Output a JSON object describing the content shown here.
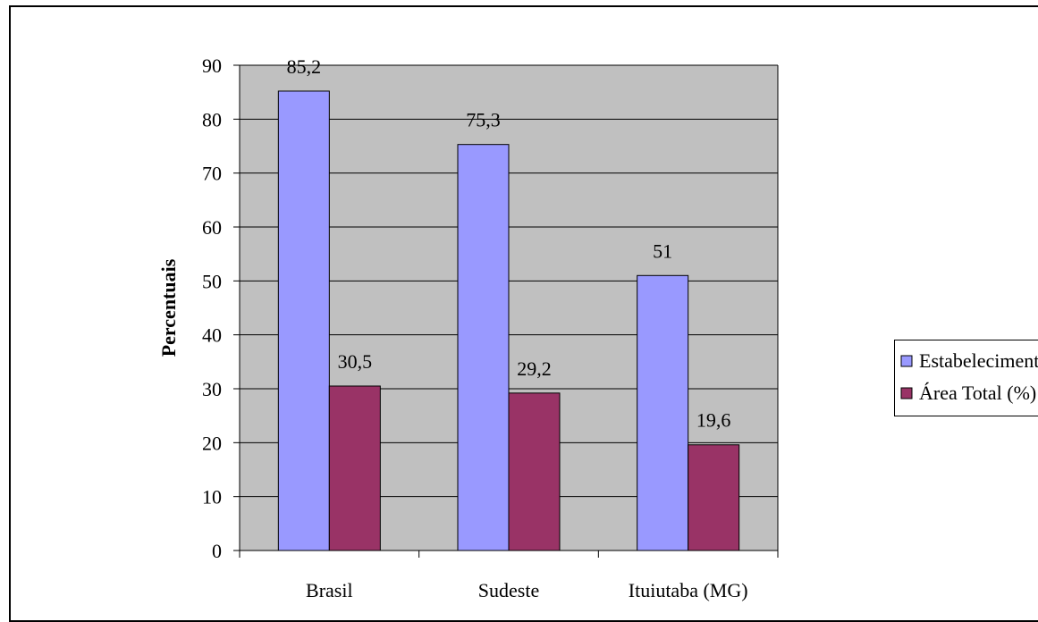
{
  "chart_data": {
    "type": "bar",
    "categories": [
      "Brasil",
      "Sudeste",
      "Ituiutaba (MG)"
    ],
    "series": [
      {
        "name": "Estabelecimentos (%)",
        "values": [
          85.2,
          75.3,
          51
        ],
        "labels": [
          "85,2",
          "75,3",
          "51"
        ],
        "color": "#9999ff"
      },
      {
        "name": "Área Total (%)",
        "values": [
          30.5,
          29.2,
          19.6
        ],
        "labels": [
          "30,5",
          "29,2",
          "19,6"
        ],
        "color": "#993366"
      }
    ],
    "ylabel": "Percentuais",
    "xlabel": "",
    "title": "",
    "ylim": [
      0,
      90
    ],
    "yticks": [
      0,
      10,
      20,
      30,
      40,
      50,
      60,
      70,
      80,
      90
    ],
    "grid": true,
    "plot_background": "#c0c0c0",
    "legend_position": "right"
  }
}
